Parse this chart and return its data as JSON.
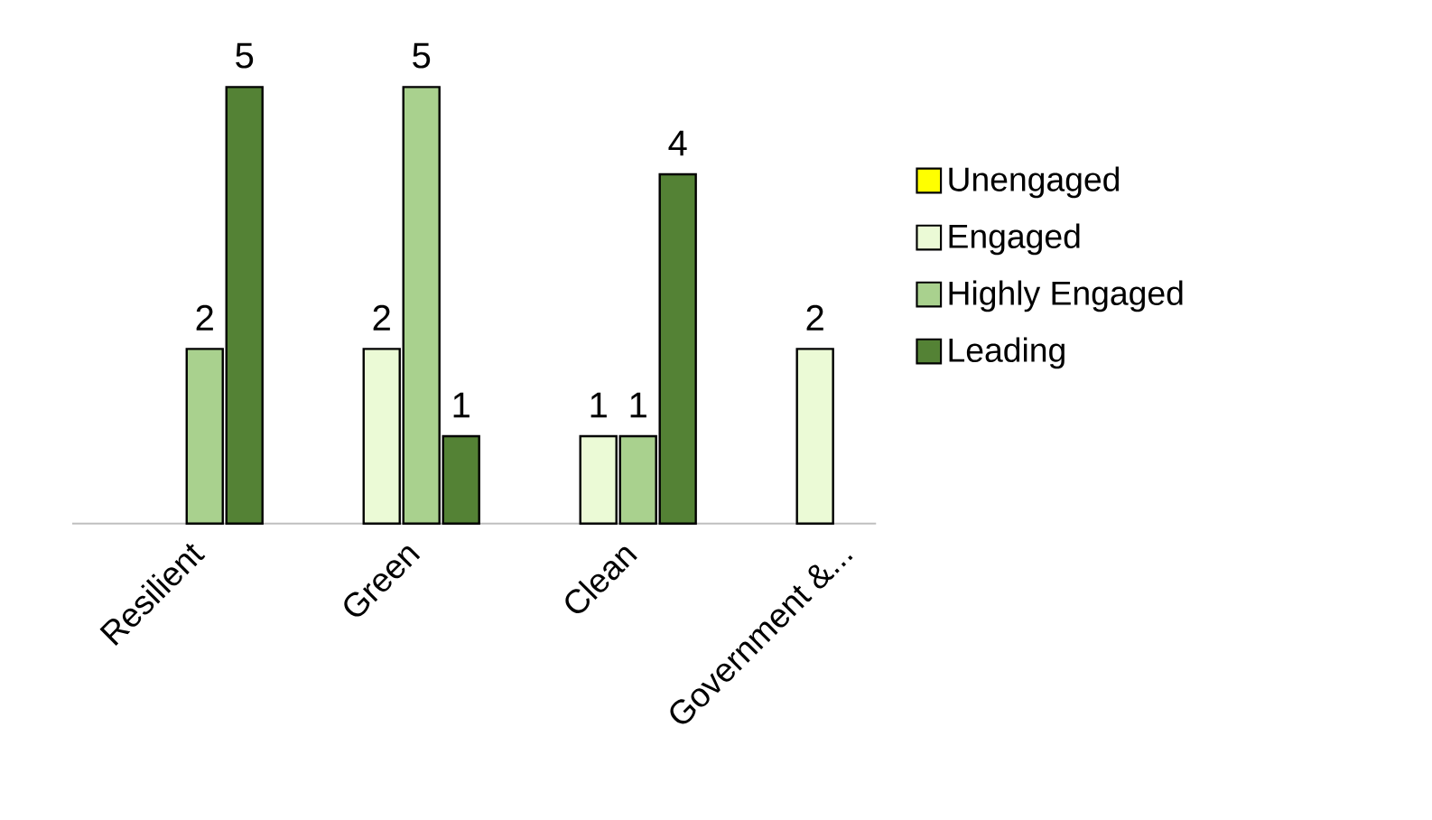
{
  "chart_data": {
    "type": "bar",
    "categories": [
      "Resilient",
      "Green",
      "Clean",
      "Government &..."
    ],
    "series": [
      {
        "name": "Unengaged",
        "color": "#ffff00",
        "values": [
          null,
          null,
          null,
          null
        ]
      },
      {
        "name": "Engaged",
        "color": "#ebfad6",
        "values": [
          null,
          2,
          1,
          2
        ]
      },
      {
        "name": "Highly Engaged",
        "color": "#a9d18e",
        "values": [
          2,
          5,
          1,
          null
        ]
      },
      {
        "name": "Leading",
        "color": "#548235",
        "values": [
          5,
          1,
          4,
          null
        ]
      }
    ],
    "data_labels": true,
    "legend": "right"
  }
}
